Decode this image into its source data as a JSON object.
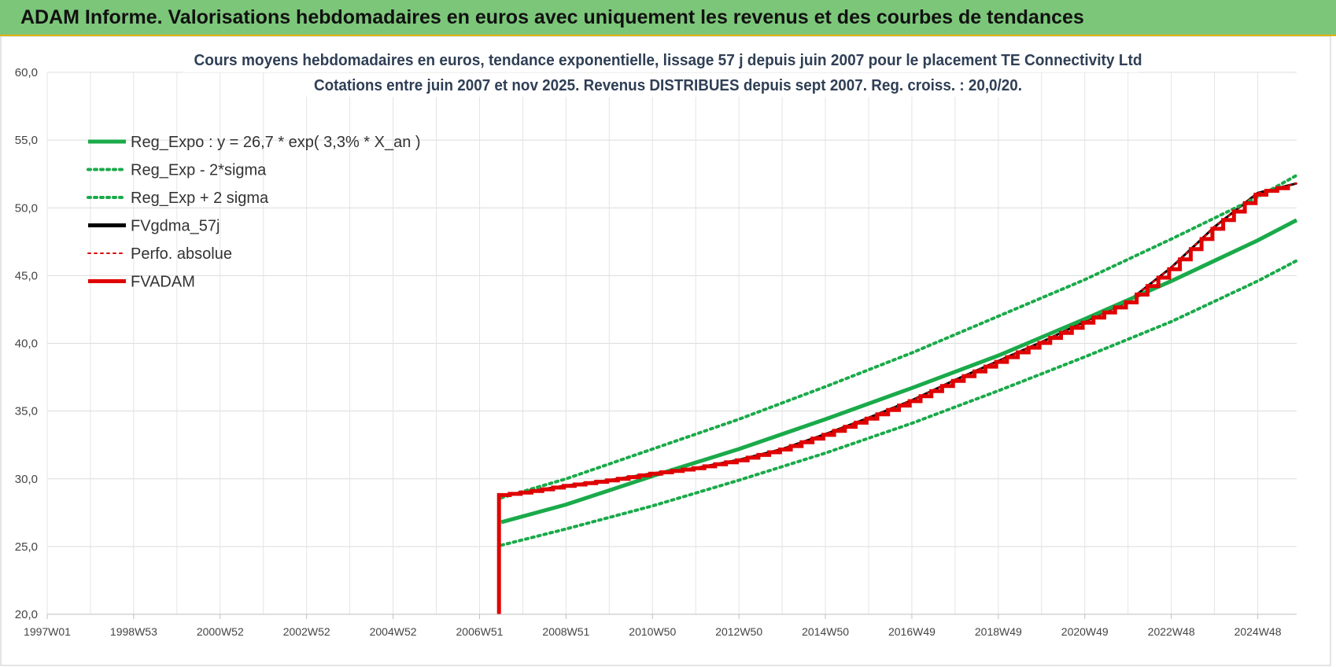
{
  "banner": {
    "title": "ADAM Informe. Valorisations hebdomadaires en euros avec uniquement les revenus et des courbes de tendances"
  },
  "chart_data": {
    "type": "line",
    "title_lines": [
      "Cours moyens  hebdomadaires en euros, tendance exponentielle, lissage 57 j depuis juin 2007 pour le placement  TE Connectivity Ltd",
      "Cotations entre juin 2007 et nov 2025.  Revenus DISTRIBUES depuis sept 2007.  Reg. croiss. : 20,0/20."
    ],
    "xlabel": "",
    "ylabel": "",
    "ylim": [
      20,
      60
    ],
    "xlim": [
      1997.0,
      2025.9
    ],
    "y_ticks": [
      "20,0",
      "25,0",
      "30,0",
      "35,0",
      "40,0",
      "45,0",
      "50,0",
      "55,0",
      "60,0"
    ],
    "y_tick_values": [
      20,
      25,
      30,
      35,
      40,
      45,
      50,
      55,
      60
    ],
    "x_ticks": [
      "1997W01",
      "1998W53",
      "2000W52",
      "2002W52",
      "2004W52",
      "2006W51",
      "2008W51",
      "2010W50",
      "2012W50",
      "2014W50",
      "2016W49",
      "2018W49",
      "2020W49",
      "2022W48",
      "2024W48"
    ],
    "x_tick_values": [
      1997.0,
      1999.0,
      2001.0,
      2003.0,
      2005.0,
      2007.0,
      2009.0,
      2011.0,
      2013.0,
      2015.0,
      2017.0,
      2019.0,
      2021.0,
      2023.0,
      2025.0
    ],
    "grid": true,
    "legend_position": "top-left",
    "series": [
      {
        "name": "Reg_Expo : y = 26,7 * exp( 3,3% *  X_an )",
        "color": "#1aaa4a",
        "style": "solid",
        "width": 5,
        "points": [
          [
            2007.5,
            26.8
          ],
          [
            2009,
            28.1
          ],
          [
            2011,
            30.2
          ],
          [
            2013,
            32.2
          ],
          [
            2015,
            34.4
          ],
          [
            2017,
            36.7
          ],
          [
            2019,
            39.1
          ],
          [
            2021,
            41.8
          ],
          [
            2023,
            44.6
          ],
          [
            2025,
            47.6
          ],
          [
            2025.9,
            49.1
          ]
        ]
      },
      {
        "name": "Reg_Exp - 2*sigma",
        "color": "#1aaa4a",
        "style": "dotted",
        "width": 4,
        "points": [
          [
            2007.5,
            25.1
          ],
          [
            2009,
            26.3
          ],
          [
            2011,
            28.0
          ],
          [
            2013,
            29.9
          ],
          [
            2015,
            31.9
          ],
          [
            2017,
            34.1
          ],
          [
            2019,
            36.5
          ],
          [
            2021,
            39.0
          ],
          [
            2023,
            41.6
          ],
          [
            2025,
            44.6
          ],
          [
            2025.9,
            46.1
          ]
        ]
      },
      {
        "name": "Reg_Exp + 2 sigma",
        "color": "#1aaa4a",
        "style": "dotted",
        "width": 4,
        "points": [
          [
            2007.5,
            28.6
          ],
          [
            2009,
            30.0
          ],
          [
            2011,
            32.2
          ],
          [
            2013,
            34.4
          ],
          [
            2015,
            36.8
          ],
          [
            2017,
            39.3
          ],
          [
            2019,
            42.0
          ],
          [
            2021,
            44.7
          ],
          [
            2023,
            47.7
          ],
          [
            2025,
            50.8
          ],
          [
            2025.9,
            52.4
          ]
        ]
      },
      {
        "name": "FVgdma_57j",
        "color": "#000000",
        "style": "solid",
        "width": 3,
        "points": [
          [
            2007.5,
            28.8
          ],
          [
            2008,
            29.0
          ],
          [
            2009,
            29.5
          ],
          [
            2010,
            29.9
          ],
          [
            2011,
            30.4
          ],
          [
            2012,
            30.8
          ],
          [
            2013,
            31.4
          ],
          [
            2014,
            32.2
          ],
          [
            2015,
            33.3
          ],
          [
            2016,
            34.5
          ],
          [
            2017,
            35.8
          ],
          [
            2018,
            37.3
          ],
          [
            2019,
            38.7
          ],
          [
            2020,
            40.1
          ],
          [
            2021,
            41.6
          ],
          [
            2022,
            43.1
          ],
          [
            2023,
            45.6
          ],
          [
            2024,
            48.6
          ],
          [
            2025,
            51.1
          ],
          [
            2025.9,
            51.8
          ]
        ]
      },
      {
        "name": "Perfo. absolue",
        "color": "#e00000",
        "style": "dotted",
        "width": 2,
        "points": [
          [
            2007.5,
            28.8
          ],
          [
            2008,
            29.0
          ],
          [
            2009,
            29.5
          ],
          [
            2010,
            29.9
          ],
          [
            2011,
            30.4
          ],
          [
            2012,
            30.8
          ],
          [
            2013,
            31.4
          ],
          [
            2014,
            32.2
          ],
          [
            2015,
            33.3
          ],
          [
            2016,
            34.5
          ],
          [
            2017,
            35.8
          ],
          [
            2018,
            37.3
          ],
          [
            2019,
            38.7
          ],
          [
            2020,
            40.1
          ],
          [
            2021,
            41.6
          ],
          [
            2022,
            43.1
          ],
          [
            2023,
            45.6
          ],
          [
            2024,
            48.6
          ],
          [
            2025,
            51.1
          ],
          [
            2025.9,
            51.8
          ]
        ]
      },
      {
        "name": "FVADAM",
        "color": "#e00000",
        "style": "solid",
        "width": 5,
        "stepped": true,
        "points": [
          [
            2007.45,
            20.0
          ],
          [
            2007.45,
            28.8
          ],
          [
            2008,
            29.0
          ],
          [
            2009,
            29.5
          ],
          [
            2010,
            29.9
          ],
          [
            2011,
            30.4
          ],
          [
            2012,
            30.8
          ],
          [
            2013,
            31.4
          ],
          [
            2014,
            32.2
          ],
          [
            2015,
            33.3
          ],
          [
            2016,
            34.5
          ],
          [
            2017,
            35.8
          ],
          [
            2018,
            37.3
          ],
          [
            2019,
            38.7
          ],
          [
            2020,
            40.1
          ],
          [
            2021,
            41.6
          ],
          [
            2022,
            43.1
          ],
          [
            2023,
            45.6
          ],
          [
            2024,
            48.6
          ],
          [
            2025,
            51.1
          ],
          [
            2025.9,
            51.8
          ]
        ]
      }
    ]
  }
}
